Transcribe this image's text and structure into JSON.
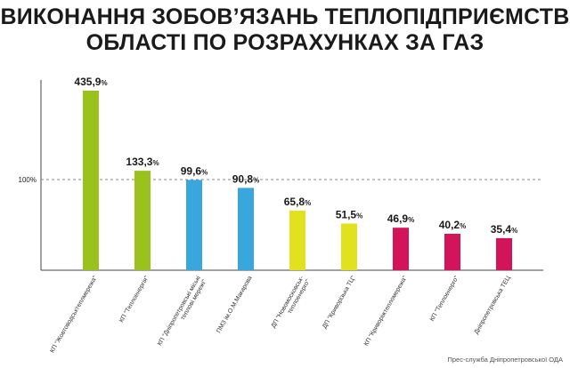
{
  "title_lines": [
    "ВИКОНАННЯ ЗОБОВ’ЯЗАНЬ ТЕПЛОПІДПРИЄМСТВ",
    "ОБЛАСТІ ПО РОЗРАХУНКАХ ЗА ГАЗ"
  ],
  "source": "Прес-служба Дніпропетровської ОДА",
  "chart_data": {
    "type": "bar",
    "categories": [
      "КП \"Жовтоводськтеплмережа\"",
      "КП \"Теплоенергія\"",
      "КП \"Дніпропетровські міські теплові мережі\"",
      "ПМЗ ім.О.М.Макарова",
      "ДП \"Новомосковськ-теплоенерго\"",
      "ДП \"Криворізька ТЦ\"",
      "КП \"Криворіжтепломережа\"",
      "КП \"Теплоенерго\"",
      "Дніпропетровська ТЕЦ"
    ],
    "values": [
      435.9,
      133.3,
      99.6,
      90.8,
      65.8,
      51.5,
      46.9,
      40.2,
      35.4
    ],
    "value_labels": [
      "435,9",
      "133,3",
      "99,6",
      "90,8",
      "65,8",
      "51,5",
      "46,9",
      "40,2",
      "35,4"
    ],
    "unit": "%",
    "colors": [
      "#99c31c",
      "#99c31c",
      "#3aa6de",
      "#3aa6de",
      "#e1e11e",
      "#e1e11e",
      "#d4145a",
      "#d4145a",
      "#d4145a"
    ],
    "reference_line": {
      "value": 100,
      "label": "100%"
    },
    "scale": "broken",
    "grid": false
  }
}
